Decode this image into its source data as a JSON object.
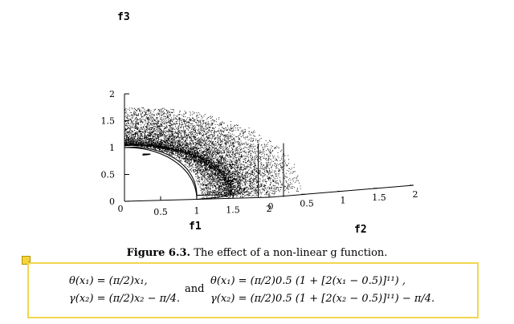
{
  "chart_data": {
    "type": "scatter",
    "projection": "3d",
    "xlabel": "f1",
    "ylabel": "f2",
    "zlabel": "f3",
    "x_ticks": [
      "0.5",
      "1",
      "1.5",
      "2"
    ],
    "y_ticks": [
      "0",
      "0.5",
      "1",
      "1.5",
      "2"
    ],
    "z_ticks": [
      "2",
      "1.5",
      "1",
      "0.5",
      "0"
    ],
    "xlim": [
      0,
      2
    ],
    "ylim": [
      0,
      2
    ],
    "zlim": [
      0,
      2
    ],
    "grid": false,
    "legend": "none"
  },
  "caption": {
    "label": "Figure 6.3.",
    "text": " The effect of a non-linear g function."
  },
  "equations": {
    "left_line1": "θ(x₁) = (π/2)x₁,",
    "left_line2": "γ(x₂) = (π/2)x₂ − π/4.",
    "connector": "and",
    "right_line1": "θ(x₁) = (π/2)0.5 (1 + [2(x₁ − 0.5)]¹¹) ,",
    "right_line2": "γ(x₂) = (π/2)0.5 (1 + [2(x₂ − 0.5)]¹¹) − π/4."
  },
  "colors": {
    "points": "#000000",
    "annotation_box": "#f2d64f",
    "note_icon": "#f5d33b"
  },
  "icons": {
    "note": "note-icon"
  }
}
